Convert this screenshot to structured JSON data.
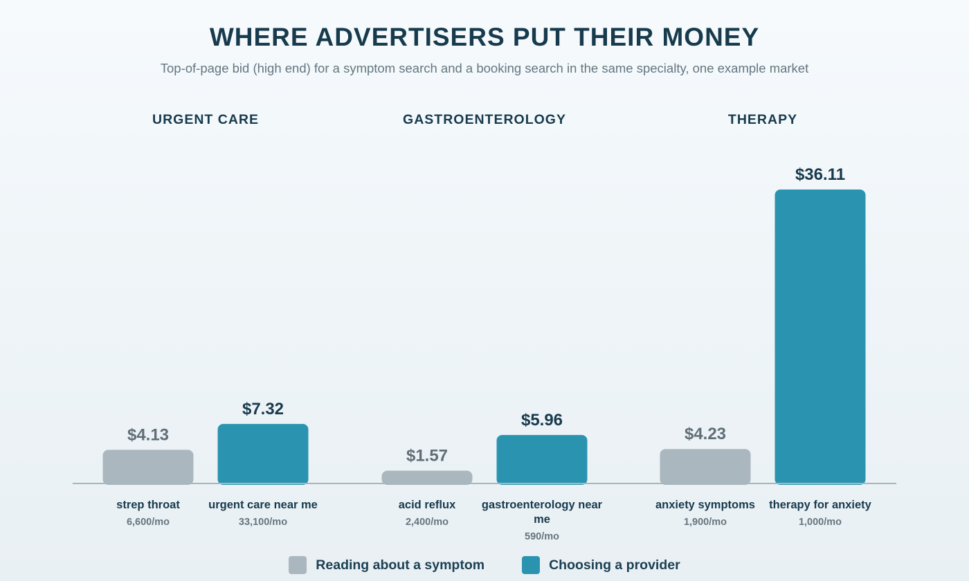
{
  "chart_data": {
    "type": "bar",
    "title": "WHERE ADVERTISERS PUT THEIR MONEY",
    "subtitle": "Top-of-page bid (high end) for a symptom search and a booking search in the same specialty, one example market",
    "ylim": [
      0,
      36.11
    ],
    "grid": false,
    "legend_position": "bottom-center",
    "series": [
      {
        "name": "Reading about a symptom",
        "color": "#aab7be",
        "label_color": "#5f6e77"
      },
      {
        "name": "Choosing a provider",
        "color": "#2a94b0",
        "label_color": "#173a4d"
      }
    ],
    "groups": [
      {
        "name": "URGENT CARE",
        "bars": [
          {
            "series": 0,
            "keyword": "strep throat",
            "volume": "6,600/mo",
            "value": 4.13,
            "value_label": "$4.13"
          },
          {
            "series": 1,
            "keyword": "urgent care near me",
            "volume": "33,100/mo",
            "value": 7.32,
            "value_label": "$7.32"
          }
        ]
      },
      {
        "name": "GASTROENTEROLOGY",
        "bars": [
          {
            "series": 0,
            "keyword": "acid reflux",
            "volume": "2,400/mo",
            "value": 1.57,
            "value_label": "$1.57"
          },
          {
            "series": 1,
            "keyword": "gastroenterology near me",
            "volume": "590/mo",
            "value": 5.96,
            "value_label": "$5.96"
          }
        ]
      },
      {
        "name": "THERAPY",
        "bars": [
          {
            "series": 0,
            "keyword": "anxiety symptoms",
            "volume": "1,900/mo",
            "value": 4.23,
            "value_label": "$4.23"
          },
          {
            "series": 1,
            "keyword": "therapy for anxiety",
            "volume": "1,000/mo",
            "value": 36.11,
            "value_label": "$36.11"
          }
        ]
      }
    ]
  }
}
